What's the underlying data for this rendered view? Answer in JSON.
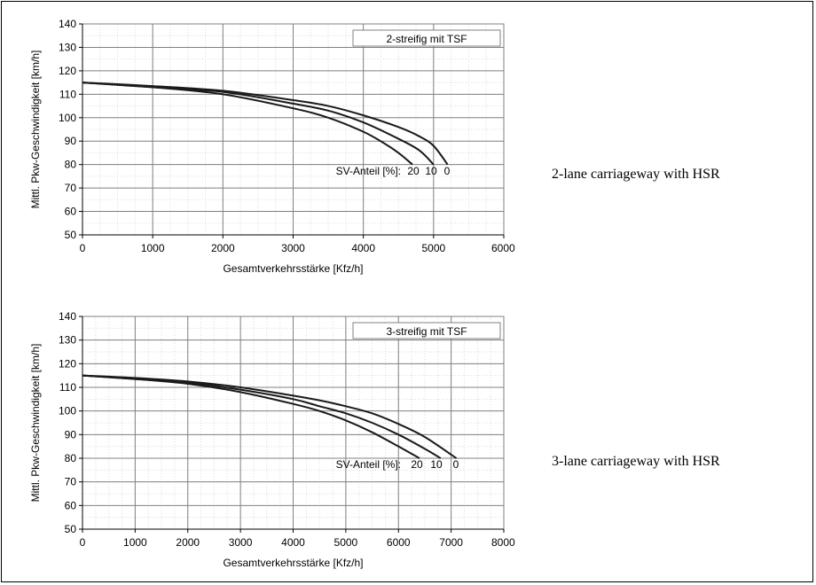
{
  "chart_data": [
    {
      "type": "line",
      "legend_box": "2-streifig mit TSF",
      "ylabel": "Mittl. Pkw-Geschwindigkeit [km/h]",
      "xlabel": "Gesamtverkehrsstärke [Kfz/h]",
      "xlim": [
        0,
        6000
      ],
      "ylim": [
        50,
        140
      ],
      "xticks": [
        0,
        1000,
        2000,
        3000,
        4000,
        5000,
        6000
      ],
      "xtick_labels": [
        "0",
        "1000",
        "2000",
        "3000",
        "4000",
        "5000",
        "6000"
      ],
      "yticks": [
        50,
        60,
        70,
        80,
        90,
        100,
        110,
        120,
        130,
        140
      ],
      "ytick_labels": [
        "50",
        "60",
        "70",
        "80",
        "90",
        "100",
        "110",
        "120",
        "130",
        "140"
      ],
      "grid": true,
      "annotation": "SV-Anteil [%]:",
      "series": [
        {
          "name": "20",
          "x": [
            0,
            1000,
            2000,
            3000,
            3500,
            4000,
            4300,
            4500,
            4700
          ],
          "y": [
            115,
            113,
            110,
            104,
            100,
            94,
            89,
            85,
            80
          ]
        },
        {
          "name": "10",
          "x": [
            0,
            1000,
            2000,
            3000,
            3500,
            4000,
            4500,
            4800,
            5000
          ],
          "y": [
            115,
            113,
            111,
            106,
            103,
            98,
            91,
            86,
            80
          ]
        },
        {
          "name": "0",
          "x": [
            0,
            1000,
            2000,
            3000,
            3500,
            4000,
            4500,
            4800,
            5000,
            5200
          ],
          "y": [
            115,
            113.5,
            111.5,
            107.5,
            105,
            101,
            96,
            92,
            88,
            80
          ]
        }
      ],
      "caption": "2-lane carriageway with HSR"
    },
    {
      "type": "line",
      "legend_box": "3-streifig mit TSF",
      "ylabel": "Mittl. Pkw-Geschwindigkeit [km/h]",
      "xlabel": "Gesamtverkehrsstärke [Kfz/h]",
      "xlim": [
        0,
        8000
      ],
      "ylim": [
        50,
        140
      ],
      "xticks": [
        0,
        1000,
        2000,
        3000,
        4000,
        5000,
        6000,
        7000,
        8000
      ],
      "xtick_labels": [
        "0",
        "1000",
        "2000",
        "3000",
        "4000",
        "5000",
        "6000",
        "7000",
        "8000"
      ],
      "yticks": [
        50,
        60,
        70,
        80,
        90,
        100,
        110,
        120,
        130,
        140
      ],
      "ytick_labels": [
        "50",
        "60",
        "70",
        "80",
        "90",
        "100",
        "110",
        "120",
        "130",
        "140"
      ],
      "grid": true,
      "annotation": "SV-Anteil [%]:",
      "series": [
        {
          "name": "20",
          "x": [
            0,
            1000,
            2000,
            3000,
            4000,
            4500,
            5000,
            5500,
            6000,
            6400
          ],
          "y": [
            115,
            113.5,
            111.5,
            108,
            103,
            100,
            96,
            91,
            85,
            80
          ]
        },
        {
          "name": "10",
          "x": [
            0,
            1000,
            2000,
            3000,
            4000,
            4500,
            5000,
            5500,
            6000,
            6500,
            6800
          ],
          "y": [
            115,
            113.5,
            112,
            109,
            105,
            102,
            99,
            95,
            90,
            84,
            80
          ]
        },
        {
          "name": "0",
          "x": [
            0,
            1000,
            2000,
            3000,
            4000,
            4500,
            5000,
            5500,
            6000,
            6500,
            7100
          ],
          "y": [
            115,
            114,
            112.5,
            110,
            106.5,
            104.5,
            102,
            99,
            94.5,
            89,
            80
          ]
        }
      ],
      "caption": "3-lane carriageway with HSR"
    }
  ]
}
